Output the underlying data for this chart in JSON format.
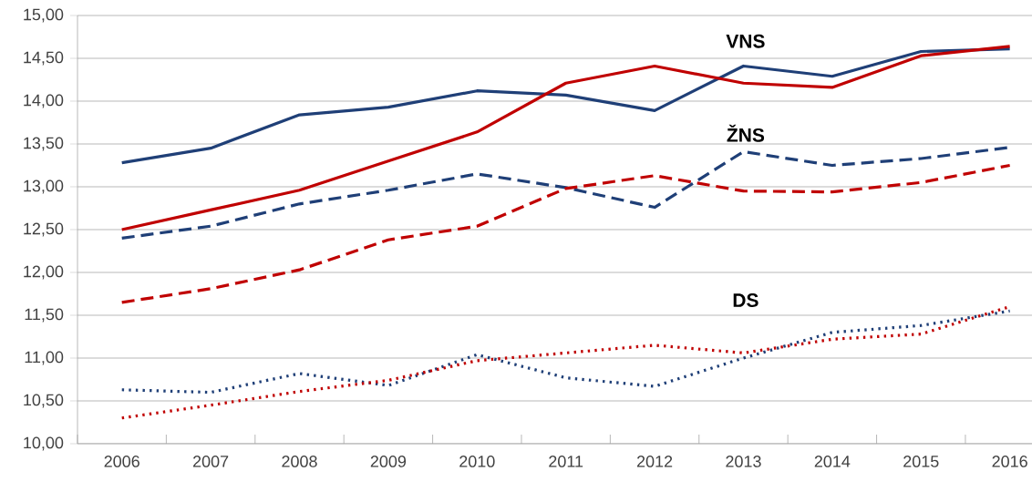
{
  "chart_data": {
    "type": "line",
    "categories": [
      "2006",
      "2007",
      "2008",
      "2009",
      "2010",
      "2011",
      "2012",
      "2013",
      "2014",
      "2015",
      "2016"
    ],
    "series": [
      {
        "color": "#1f3f77",
        "line_style": "solid",
        "values": [
          13.28,
          13.45,
          13.84,
          13.93,
          14.12,
          14.07,
          13.89,
          14.41,
          14.29,
          14.58,
          14.61
        ]
      },
      {
        "color": "#c00000",
        "line_style": "solid",
        "values": [
          12.5,
          12.73,
          12.96,
          13.3,
          13.64,
          14.21,
          14.41,
          14.21,
          14.16,
          14.53,
          14.64
        ]
      },
      {
        "color": "#1f3f77",
        "line_style": "dashed",
        "values": [
          12.4,
          12.54,
          12.8,
          12.96,
          13.15,
          12.99,
          12.76,
          13.41,
          13.25,
          13.33,
          13.46
        ]
      },
      {
        "color": "#c00000",
        "line_style": "dashed",
        "values": [
          11.65,
          11.81,
          12.03,
          12.38,
          12.54,
          12.98,
          13.13,
          12.95,
          12.94,
          13.05,
          13.25
        ]
      },
      {
        "color": "#1f3f77",
        "line_style": "dotted",
        "values": [
          10.63,
          10.6,
          10.82,
          10.68,
          11.04,
          10.77,
          10.67,
          11.0,
          11.3,
          11.38,
          11.55
        ]
      },
      {
        "color": "#c00000",
        "line_style": "dotted",
        "values": [
          10.3,
          10.45,
          10.61,
          10.74,
          10.97,
          11.06,
          11.15,
          11.06,
          11.22,
          11.28,
          11.6
        ]
      }
    ],
    "annotations": [
      "VNS",
      "ŽNS",
      "DS"
    ],
    "ylim": [
      10,
      15
    ],
    "yticks": [
      {
        "value": 10,
        "label": "10,00"
      },
      {
        "value": 10.5,
        "label": "10,50"
      },
      {
        "value": 11,
        "label": "11,00"
      },
      {
        "value": 11.5,
        "label": "11,50"
      },
      {
        "value": 12,
        "label": "12,00"
      },
      {
        "value": 12.5,
        "label": "12,50"
      },
      {
        "value": 13,
        "label": "13,00"
      },
      {
        "value": 13.5,
        "label": "13,50"
      },
      {
        "value": 14,
        "label": "14,00"
      },
      {
        "value": 14.5,
        "label": "14,50"
      },
      {
        "value": 15,
        "label": "15,00"
      }
    ],
    "grid": "y"
  }
}
